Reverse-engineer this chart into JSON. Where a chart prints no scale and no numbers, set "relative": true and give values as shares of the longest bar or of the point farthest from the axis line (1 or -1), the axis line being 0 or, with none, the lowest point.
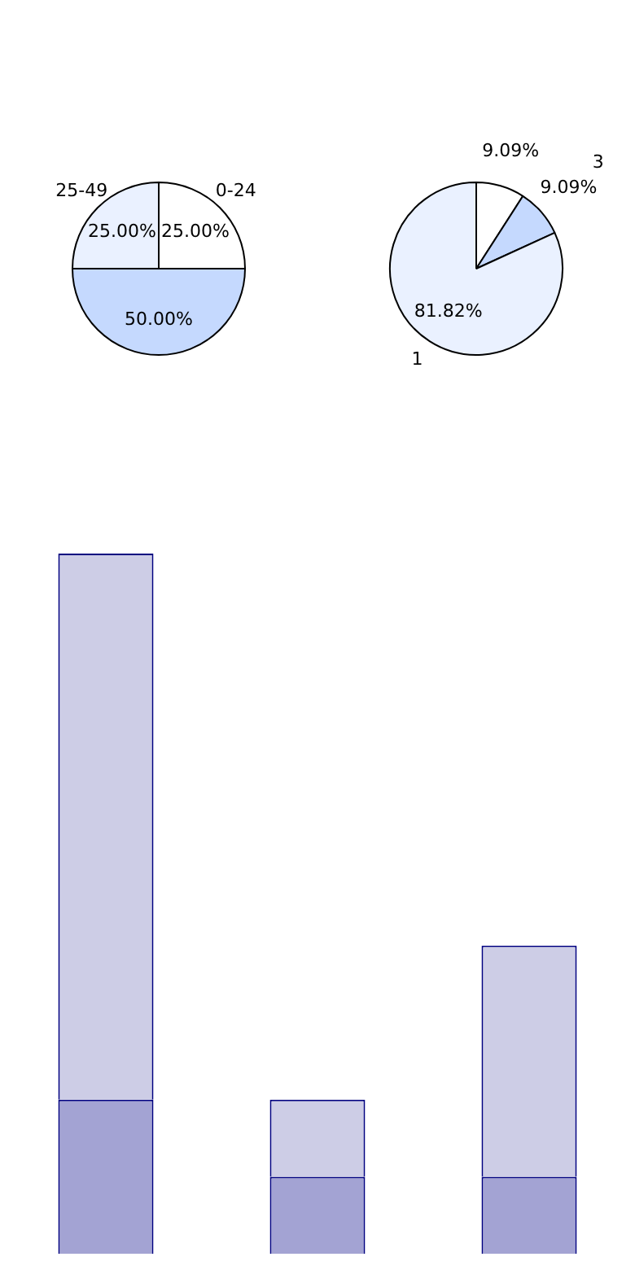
{
  "chart_data": [
    {
      "type": "pie",
      "categories": [
        "0-24",
        null,
        "25-49"
      ],
      "values": [
        25,
        50,
        25
      ],
      "colors": [
        "#ffffff",
        "#c5d9fe",
        "#eaf1ff"
      ],
      "value_labels": [
        "25.00%",
        "50.00%",
        "25.00%"
      ],
      "legend": false
    },
    {
      "type": "pie",
      "categories": [
        null,
        "3",
        "1"
      ],
      "values": [
        9.09,
        9.09,
        81.82
      ],
      "colors": [
        "#ffffff",
        "#c5d9fe",
        "#eaf1ff"
      ],
      "value_labels": [
        "9.09%",
        "9.09%",
        "81.82%"
      ],
      "legend": false
    },
    {
      "type": "bar",
      "categories": [
        null,
        null,
        null
      ],
      "stacked": true,
      "relative": true,
      "legend": false,
      "series": [
        {
          "color": "#a3a3d3",
          "values": [
            0.22,
            0.11,
            0.11
          ]
        },
        {
          "color": "#cdcde6",
          "values": [
            0.78,
            0.11,
            0.33
          ]
        }
      ]
    }
  ]
}
